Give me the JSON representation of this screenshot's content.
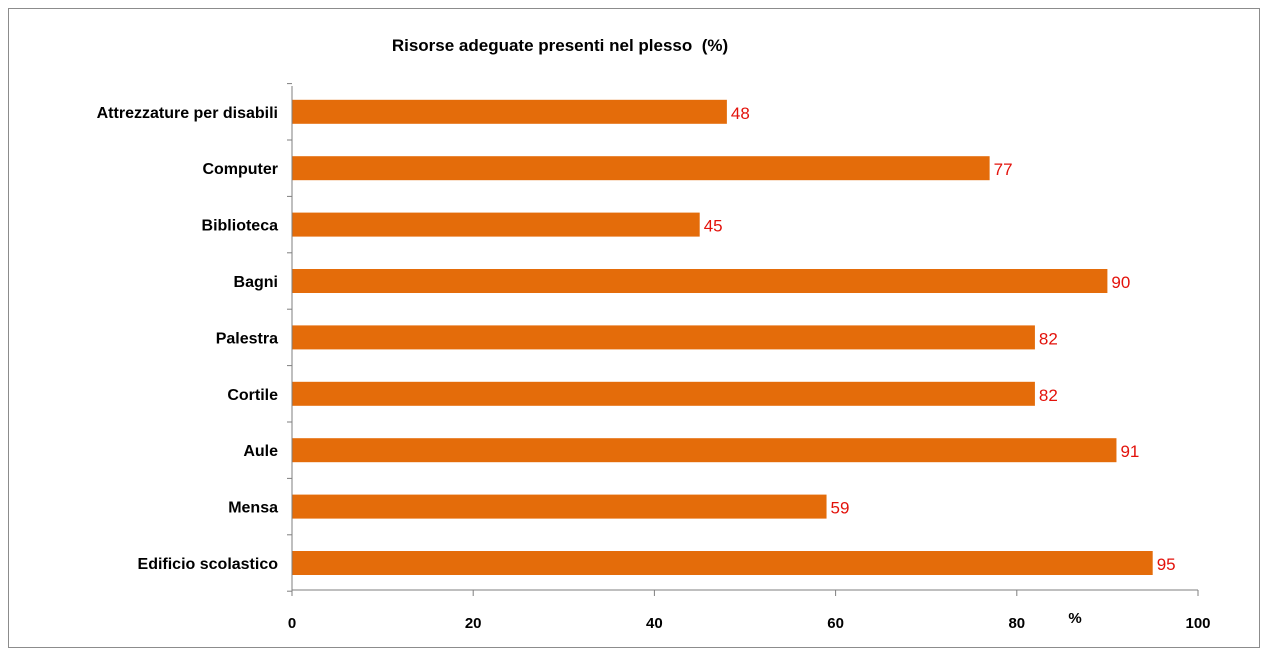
{
  "chart_data": {
    "type": "bar",
    "orientation": "horizontal",
    "title": "Risorse adeguate presenti nel plesso  (%)",
    "xlabel": "%",
    "ylabel": "",
    "categories": [
      "Edificio scolastico",
      "Mensa",
      "Aule",
      "Cortile",
      "Palestra",
      "Bagni",
      "Biblioteca",
      "Computer",
      "Attrezzature per disabili"
    ],
    "values": [
      95,
      59,
      91,
      82,
      82,
      90,
      45,
      77,
      48
    ],
    "xlim": [
      0,
      100
    ],
    "xticks": [
      0,
      20,
      40,
      60,
      80,
      100
    ],
    "grid": false,
    "legend": "none",
    "colors": {
      "bar": "#E46C0A",
      "data_label": "#E3120B",
      "axis": "#7f7f7f"
    }
  }
}
